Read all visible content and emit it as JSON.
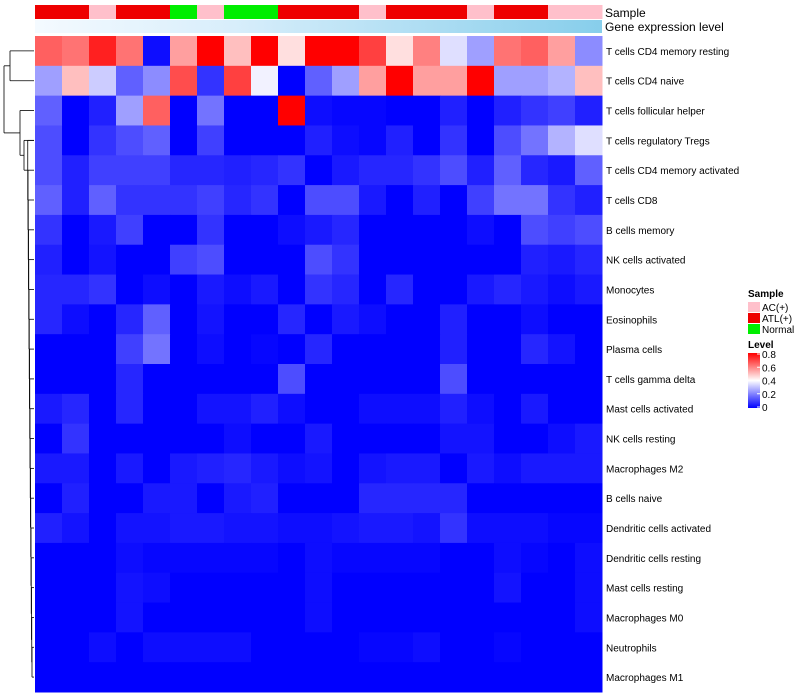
{
  "chart_data": {
    "type": "heatmap",
    "title": "",
    "annotations": {
      "sample_label": "Sample",
      "gene_label": "Gene expression level",
      "sample_groups": [
        "ATL",
        "ATL",
        "AC",
        "ATL",
        "ATL",
        "Normal",
        "AC",
        "Normal",
        "Normal",
        "ATL",
        "ATL",
        "ATL",
        "AC",
        "ATL",
        "ATL",
        "ATL",
        "AC",
        "ATL",
        "ATL",
        "AC",
        "AC"
      ]
    },
    "rows": [
      "T cells CD4 memory resting",
      "T cells CD4 naive",
      "T cells follicular helper",
      "T cells regulatory  Tregs",
      "T cells CD4 memory activated",
      "T cells CD8",
      "B cells memory",
      "NK cells activated",
      "Monocytes",
      "Eosinophils",
      "Plasma cells",
      "T cells gamma delta",
      "Mast cells activated",
      "NK cells resting",
      "Macrophages M2",
      "B cells naive",
      "Dendritic cells activated",
      "Dendritic cells resting",
      "Mast cells resting",
      "Macrophages M0",
      "Neutrophils",
      "Macrophages M1"
    ],
    "values": [
      [
        0.65,
        0.62,
        0.75,
        0.62,
        0.02,
        0.55,
        0.8,
        0.5,
        0.8,
        0.45,
        0.8,
        0.8,
        0.7,
        0.45,
        0.6,
        0.35,
        0.25,
        0.62,
        0.65,
        0.55,
        0.22
      ],
      [
        0.25,
        0.5,
        0.32,
        0.15,
        0.22,
        0.68,
        0.08,
        0.7,
        0.38,
        0.0,
        0.15,
        0.25,
        0.55,
        0.8,
        0.55,
        0.55,
        0.8,
        0.25,
        0.25,
        0.28,
        0.5
      ],
      [
        0.15,
        0.0,
        0.05,
        0.25,
        0.65,
        0.0,
        0.18,
        0.0,
        0.0,
        0.8,
        0.02,
        0.01,
        0.01,
        0.0,
        0.0,
        0.05,
        0.0,
        0.05,
        0.08,
        0.1,
        0.05
      ],
      [
        0.12,
        0.0,
        0.08,
        0.12,
        0.15,
        0.0,
        0.1,
        0.0,
        0.0,
        0.0,
        0.05,
        0.02,
        0.01,
        0.05,
        0.0,
        0.08,
        0.0,
        0.12,
        0.18,
        0.28,
        0.35
      ],
      [
        0.12,
        0.05,
        0.1,
        0.1,
        0.1,
        0.06,
        0.06,
        0.05,
        0.06,
        0.08,
        0.0,
        0.04,
        0.06,
        0.06,
        0.08,
        0.12,
        0.05,
        0.15,
        0.06,
        0.04,
        0.15
      ],
      [
        0.15,
        0.05,
        0.15,
        0.08,
        0.08,
        0.08,
        0.1,
        0.06,
        0.08,
        0.0,
        0.12,
        0.12,
        0.04,
        0.0,
        0.05,
        0.0,
        0.1,
        0.18,
        0.18,
        0.08,
        0.05
      ],
      [
        0.08,
        0.0,
        0.04,
        0.1,
        0.0,
        0.0,
        0.08,
        0.0,
        0.0,
        0.02,
        0.04,
        0.06,
        0.0,
        0.0,
        0.0,
        0.0,
        0.02,
        0.0,
        0.12,
        0.1,
        0.12
      ],
      [
        0.05,
        0.0,
        0.03,
        0.0,
        0.0,
        0.1,
        0.12,
        0.0,
        0.0,
        0.0,
        0.12,
        0.08,
        0.0,
        0.0,
        0.0,
        0.0,
        0.0,
        0.0,
        0.05,
        0.04,
        0.06
      ],
      [
        0.06,
        0.06,
        0.08,
        0.0,
        0.02,
        0.0,
        0.04,
        0.02,
        0.04,
        0.0,
        0.08,
        0.06,
        0.0,
        0.06,
        0.0,
        0.0,
        0.04,
        0.06,
        0.04,
        0.02,
        0.04
      ],
      [
        0.06,
        0.02,
        0.0,
        0.06,
        0.15,
        0.0,
        0.03,
        0.0,
        0.0,
        0.06,
        0.0,
        0.04,
        0.02,
        0.0,
        0.0,
        0.05,
        0.0,
        0.0,
        0.02,
        0.0,
        0.0
      ],
      [
        0.0,
        0.0,
        0.0,
        0.1,
        0.18,
        0.0,
        0.02,
        0.0,
        0.01,
        0.0,
        0.06,
        0.0,
        0.0,
        0.0,
        0.0,
        0.05,
        0.0,
        0.0,
        0.06,
        0.03,
        0.0
      ],
      [
        0.0,
        0.0,
        0.0,
        0.06,
        0.0,
        0.0,
        0.0,
        0.0,
        0.0,
        0.12,
        0.0,
        0.0,
        0.0,
        0.0,
        0.0,
        0.12,
        0.0,
        0.0,
        0.0,
        0.0,
        0.0
      ],
      [
        0.04,
        0.06,
        0.0,
        0.06,
        0.0,
        0.0,
        0.03,
        0.03,
        0.05,
        0.02,
        0.0,
        0.0,
        0.02,
        0.02,
        0.02,
        0.05,
        0.02,
        0.0,
        0.04,
        0.0,
        0.0
      ],
      [
        0.0,
        0.08,
        0.0,
        0.0,
        0.0,
        0.0,
        0.0,
        0.02,
        0.0,
        0.0,
        0.04,
        0.0,
        0.0,
        0.0,
        0.0,
        0.03,
        0.03,
        0.0,
        0.0,
        0.02,
        0.04
      ],
      [
        0.04,
        0.04,
        0.0,
        0.04,
        0.0,
        0.04,
        0.05,
        0.06,
        0.04,
        0.02,
        0.03,
        0.0,
        0.03,
        0.04,
        0.04,
        0.0,
        0.04,
        0.02,
        0.04,
        0.04,
        0.04
      ],
      [
        0.0,
        0.05,
        0.0,
        0.0,
        0.04,
        0.04,
        0.0,
        0.04,
        0.05,
        0.0,
        0.0,
        0.0,
        0.06,
        0.06,
        0.06,
        0.06,
        0.0,
        0.0,
        0.0,
        0.0,
        0.0
      ],
      [
        0.05,
        0.03,
        0.0,
        0.03,
        0.03,
        0.04,
        0.04,
        0.03,
        0.03,
        0.02,
        0.02,
        0.03,
        0.04,
        0.04,
        0.03,
        0.08,
        0.02,
        0.02,
        0.02,
        0.01,
        0.01
      ],
      [
        0.0,
        0.0,
        0.0,
        0.02,
        0.01,
        0.01,
        0.01,
        0.01,
        0.01,
        0.0,
        0.02,
        0.01,
        0.01,
        0.01,
        0.01,
        0.0,
        0.0,
        0.02,
        0.01,
        0.0,
        0.02
      ],
      [
        0.0,
        0.0,
        0.0,
        0.03,
        0.02,
        0.0,
        0.0,
        0.0,
        0.0,
        0.0,
        0.02,
        0.0,
        0.0,
        0.0,
        0.0,
        0.0,
        0.0,
        0.03,
        0.0,
        0.0,
        0.02
      ],
      [
        0.0,
        0.0,
        0.0,
        0.03,
        0.0,
        0.0,
        0.0,
        0.0,
        0.0,
        0.0,
        0.02,
        0.0,
        0.0,
        0.0,
        0.0,
        0.0,
        0.0,
        0.0,
        0.0,
        0.0,
        0.02
      ],
      [
        0.0,
        0.0,
        0.02,
        0.0,
        0.02,
        0.02,
        0.02,
        0.02,
        0.0,
        0.0,
        0.0,
        0.0,
        0.01,
        0.01,
        0.02,
        0.0,
        0.0,
        0.01,
        0.0,
        0.0,
        0.0
      ],
      [
        0.0,
        0.0,
        0.0,
        0.0,
        0.0,
        0.0,
        0.0,
        0.0,
        0.0,
        0.0,
        0.0,
        0.0,
        0.0,
        0.0,
        0.0,
        0.0,
        0.0,
        0.0,
        0.0,
        0.0,
        0.0
      ]
    ],
    "legend": {
      "sample_title": "Sample",
      "sample_entries": [
        {
          "label": "AC(+)",
          "color": "#ffc0cb"
        },
        {
          "label": "ATL(+)",
          "color": "#ee0000"
        },
        {
          "label": "Normal",
          "color": "#00ee00"
        }
      ],
      "level_title": "Level",
      "level_ticks": [
        "0.8",
        "0.6",
        "0.4",
        "0.2",
        "0"
      ],
      "level_range": [
        0,
        0.8
      ]
    },
    "colors": {
      "low": "#0000ff",
      "mid": "#ffffff",
      "high": "#ff0000",
      "gene_bar": "#87ceeb",
      "dendrogram": "#000000"
    }
  }
}
